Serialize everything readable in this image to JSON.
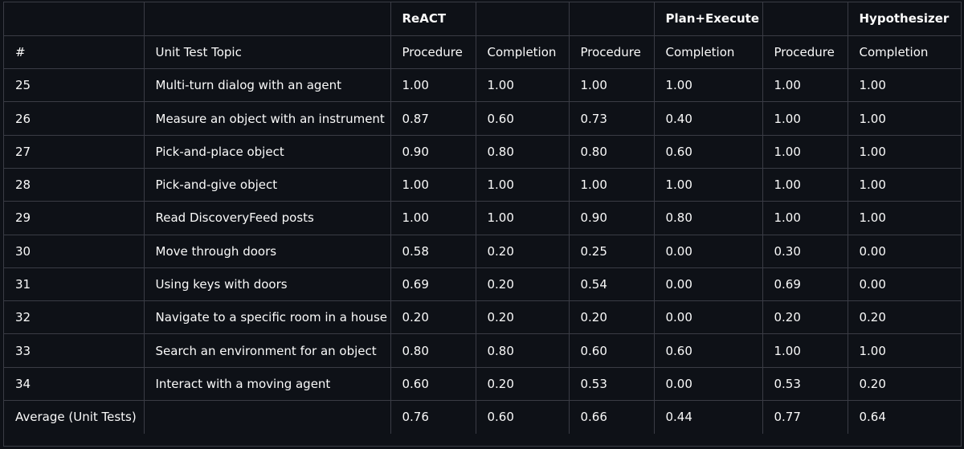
{
  "table": {
    "group_header": [
      "",
      "",
      "ReACT",
      "",
      "",
      "Plan+Execute",
      "",
      "Hypothesizer"
    ],
    "column_header": [
      "#",
      "Unit Test Topic",
      "Procedure",
      "Completion",
      "Procedure",
      "Completion",
      "Procedure",
      "Completion"
    ],
    "rows": [
      [
        "25",
        "Multi-turn dialog with an agent",
        "1.00",
        "1.00",
        "1.00",
        "1.00",
        "1.00",
        "1.00"
      ],
      [
        "26",
        "Measure an object with an instrument",
        "0.87",
        "0.60",
        "0.73",
        "0.40",
        "1.00",
        "1.00"
      ],
      [
        "27",
        "Pick-and-place object",
        "0.90",
        "0.80",
        "0.80",
        "0.60",
        "1.00",
        "1.00"
      ],
      [
        "28",
        "Pick-and-give object",
        "1.00",
        "1.00",
        "1.00",
        "1.00",
        "1.00",
        "1.00"
      ],
      [
        "29",
        "Read DiscoveryFeed posts",
        "1.00",
        "1.00",
        "0.90",
        "0.80",
        "1.00",
        "1.00"
      ],
      [
        "30",
        "Move through doors",
        "0.58",
        "0.20",
        "0.25",
        "0.00",
        "0.30",
        "0.00"
      ],
      [
        "31",
        "Using keys with doors",
        "0.69",
        "0.20",
        "0.54",
        "0.00",
        "0.69",
        "0.00"
      ],
      [
        "32",
        "Navigate to a specific room in a house",
        "0.20",
        "0.20",
        "0.20",
        "0.00",
        "0.20",
        "0.20"
      ],
      [
        "33",
        "Search an environment for an object",
        "0.80",
        "0.80",
        "0.60",
        "0.60",
        "1.00",
        "1.00"
      ],
      [
        "34",
        "Interact with a moving agent",
        "0.60",
        "0.20",
        "0.53",
        "0.00",
        "0.53",
        "0.20"
      ],
      [
        "Average (Unit Tests)",
        "",
        "0.76",
        "0.60",
        "0.66",
        "0.44",
        "0.77",
        "0.64"
      ]
    ]
  }
}
